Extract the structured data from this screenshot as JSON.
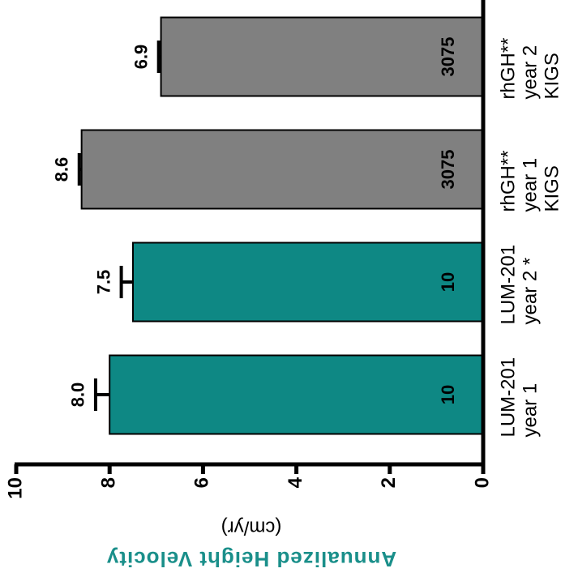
{
  "chart_data": {
    "type": "bar",
    "y_label": "Annualized Height Velocity",
    "y_unit": "(cm/yr)",
    "categories": [
      [
        "LUM-201",
        "year 1"
      ],
      [
        "LUM-201",
        "year 2 *"
      ],
      [
        "rhGH**",
        "year 1",
        "KIGS"
      ],
      [
        "rhGH**",
        "year 2",
        "KIGS"
      ]
    ],
    "values": [
      8.0,
      7.5,
      8.6,
      6.9
    ],
    "value_labels": [
      "8.0",
      "7.5",
      "8.6",
      "6.9"
    ],
    "errors": [
      0.3,
      0.25,
      0.05,
      0.05
    ],
    "n": [
      10,
      10,
      3075,
      3075
    ],
    "colors": [
      "#0e8884",
      "#0e8884",
      "#808080",
      "#808080"
    ],
    "title_color": "#1a8f8a",
    "ylim": [
      0,
      10
    ],
    "yticks": [
      0,
      2,
      4,
      6,
      8,
      10
    ]
  }
}
